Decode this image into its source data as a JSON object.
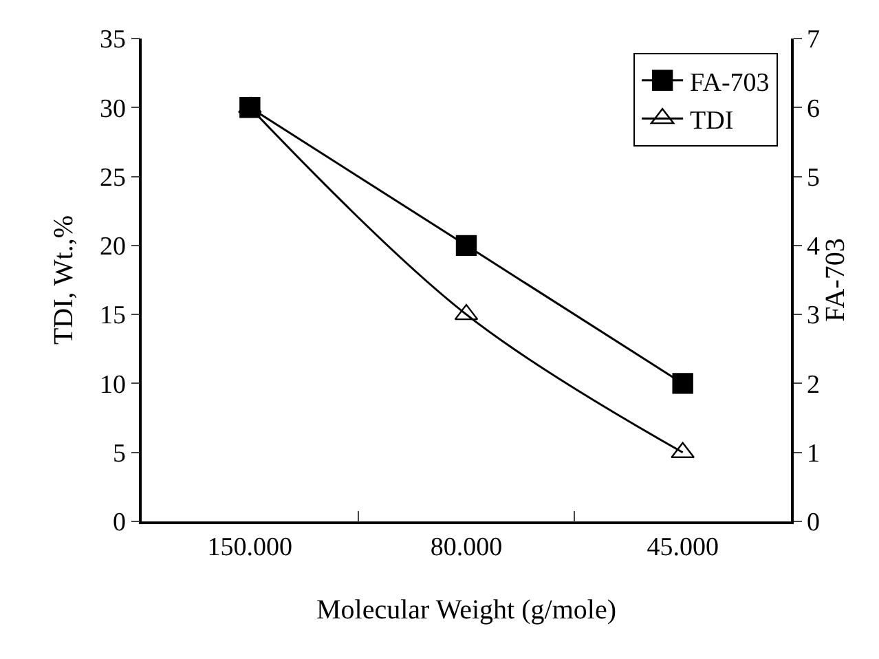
{
  "chart_data": {
    "type": "line",
    "xlabel": "Molecular Weight (g/mole)",
    "ylabel": "TDI, Wt.,%",
    "y2label": "FA-703",
    "categories": [
      "150.000",
      "80.000",
      "45.000"
    ],
    "series": [
      {
        "name": "TDI",
        "color": "#000000",
        "values": [
          30,
          15,
          5
        ],
        "marker": "triangle",
        "line_style": "solid"
      },
      {
        "name": "FA-703",
        "color": "#000000",
        "values": [
          6,
          4,
          2
        ],
        "axis": "y2",
        "marker": "square",
        "line_style": "solid"
      }
    ],
    "ylim": [
      0,
      35
    ],
    "yticks": [
      0,
      5,
      10,
      15,
      20,
      25,
      30,
      35
    ],
    "y2lim": [
      0,
      7
    ],
    "y2ticks": [
      0,
      1,
      2,
      3,
      4,
      5,
      6,
      7
    ],
    "grid": false,
    "legend": "top right"
  }
}
